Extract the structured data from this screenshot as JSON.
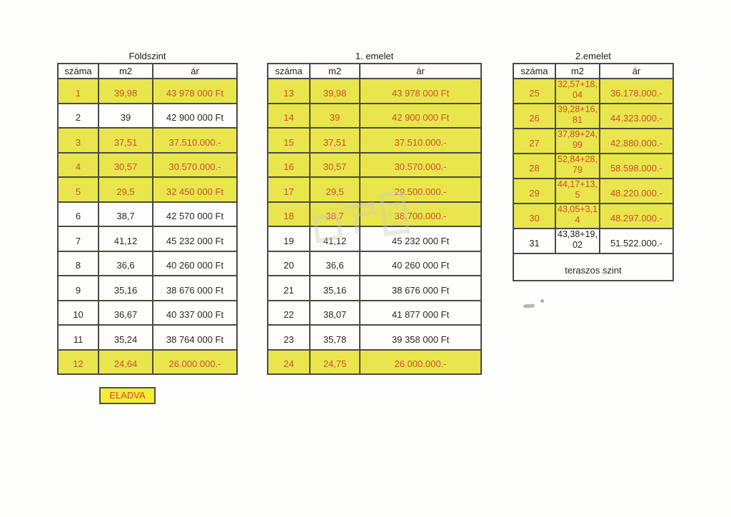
{
  "page": {
    "background": "#fdfdfb",
    "type": "scanned price list"
  },
  "colors": {
    "highlight_row": "#e9e64d",
    "highlight_text": "#cd4e2c",
    "normal_text": "#282828",
    "table_border": "#4a4a41",
    "badge_background": "#f2ee39",
    "badge_text": "#d84327"
  },
  "legend": {
    "sold_label": "ELADVA"
  },
  "tables": [
    {
      "id": "foldszint",
      "title": "Földszint",
      "headers": [
        "száma",
        "m2",
        "ár"
      ],
      "rows": [
        {
          "szama": "1",
          "m2": "39,98",
          "ar": "43 978 000 Ft",
          "sold": true
        },
        {
          "szama": "2",
          "m2": "39",
          "ar": "42 900 000 Ft",
          "sold": false
        },
        {
          "szama": "3",
          "m2": "37,51",
          "ar": "37.510.000.-",
          "sold": true
        },
        {
          "szama": "4",
          "m2": "30,57",
          "ar": "30.570.000.-",
          "sold": true
        },
        {
          "szama": "5",
          "m2": "29,5",
          "ar": "32 450 000 Ft",
          "sold": true
        },
        {
          "szama": "6",
          "m2": "38,7",
          "ar": "42 570 000 Ft",
          "sold": false
        },
        {
          "szama": "7",
          "m2": "41,12",
          "ar": "45 232 000 Ft",
          "sold": false
        },
        {
          "szama": "8",
          "m2": "36,6",
          "ar": "40 260 000 Ft",
          "sold": false
        },
        {
          "szama": "9",
          "m2": "35,16",
          "ar": "38 676 000 Ft",
          "sold": false
        },
        {
          "szama": "10",
          "m2": "36,67",
          "ar": "40 337 000 Ft",
          "sold": false
        },
        {
          "szama": "11",
          "m2": "35,24",
          "ar": "38 764 000 Ft",
          "sold": false
        },
        {
          "szama": "12",
          "m2": "24,64",
          "ar": "26.000.000.-",
          "sold": true
        }
      ]
    },
    {
      "id": "emelet1",
      "title": "1. emelet",
      "headers": [
        "száma",
        "m2",
        "ár"
      ],
      "rows": [
        {
          "szama": "13",
          "m2": "39,98",
          "ar": "43 978 000 Ft",
          "sold": true
        },
        {
          "szama": "14",
          "m2": "39",
          "ar": "42 900 000 Ft",
          "sold": true
        },
        {
          "szama": "15",
          "m2": "37,51",
          "ar": "37.510.000.-",
          "sold": true
        },
        {
          "szama": "16",
          "m2": "30,57",
          "ar": "30.570.000.-",
          "sold": true
        },
        {
          "szama": "17",
          "m2": "29,5",
          "ar": "29.500.000.-",
          "sold": true
        },
        {
          "szama": "18",
          "m2": "38,7",
          "ar": "38.700.000.-",
          "sold": true
        },
        {
          "szama": "19",
          "m2": "41,12",
          "ar": "45 232 000 Ft",
          "sold": false
        },
        {
          "szama": "20",
          "m2": "36,6",
          "ar": "40 260 000 Ft",
          "sold": false
        },
        {
          "szama": "21",
          "m2": "35,16",
          "ar": "38 676 000 Ft",
          "sold": false
        },
        {
          "szama": "22",
          "m2": "38,07",
          "ar": "41 877 000 Ft",
          "sold": false
        },
        {
          "szama": "23",
          "m2": "35,78",
          "ar": "39 358 000 Ft",
          "sold": false
        },
        {
          "szama": "24",
          "m2": "24,75",
          "ar": "26.000.000.-",
          "sold": true
        }
      ]
    },
    {
      "id": "emelet2",
      "title": "2.emelet",
      "headers": [
        "száma",
        "m2",
        "ár"
      ],
      "rows": [
        {
          "szama": "25",
          "m2": "32,57+18,\n04",
          "ar": "36.178.000.-",
          "sold": true
        },
        {
          "szama": "26",
          "m2": "39,28+16,\n81",
          "ar": "44.323.000.-",
          "sold": true
        },
        {
          "szama": "27",
          "m2": "37,89+24,\n99",
          "ar": "42.880.000.-",
          "sold": true
        },
        {
          "szama": "28",
          "m2": "52,84+28,\n79",
          "ar": "58.598.000.-",
          "sold": true
        },
        {
          "szama": "29",
          "m2": "44,17+13,\n5",
          "ar": "48.220.000.-",
          "sold": true
        },
        {
          "szama": "30",
          "m2": "43,05+3,1\n4",
          "ar": "48.297.000.-",
          "sold": true
        },
        {
          "szama": "31",
          "m2": "43,38+19,\n02",
          "ar": "51.522.000.-",
          "sold": false
        }
      ],
      "footer": "teraszos szint"
    }
  ]
}
